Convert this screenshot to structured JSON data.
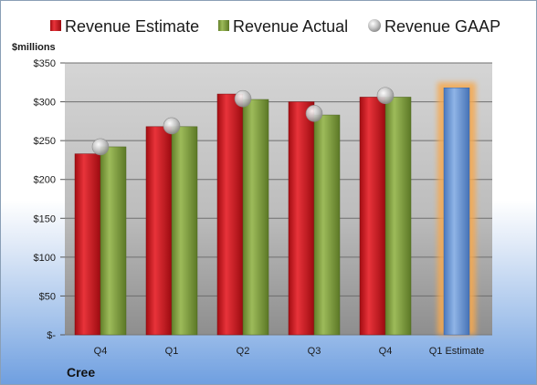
{
  "chart_data": {
    "type": "bar",
    "unit_label": "$millions",
    "company": "Cree",
    "categories": [
      "Q4",
      "Q1",
      "Q2",
      "Q3",
      "Q4",
      "Q1 Estimate"
    ],
    "y_ticks": [
      "$-",
      "$50",
      "$100",
      "$150",
      "$200",
      "$250",
      "$300",
      "$350"
    ],
    "ylim": [
      0,
      350
    ],
    "grid": true,
    "legend_position": "top",
    "series": [
      {
        "name": "Revenue Estimate",
        "kind": "bar",
        "color": "#c0161d",
        "values": [
          233,
          268,
          310,
          300,
          306,
          null
        ]
      },
      {
        "name": "Revenue Actual",
        "kind": "bar",
        "color": "#7f9c3e",
        "values": [
          242,
          268,
          303,
          283,
          306,
          null
        ]
      },
      {
        "name": "Revenue GAAP",
        "kind": "marker",
        "color": "#b8b8b8",
        "values": [
          242,
          269,
          304,
          285,
          308,
          null
        ]
      }
    ],
    "estimate_bar": {
      "category": "Q1 Estimate",
      "value": 318,
      "color": "#5b8bd0",
      "glow": "#f6a94f"
    }
  }
}
